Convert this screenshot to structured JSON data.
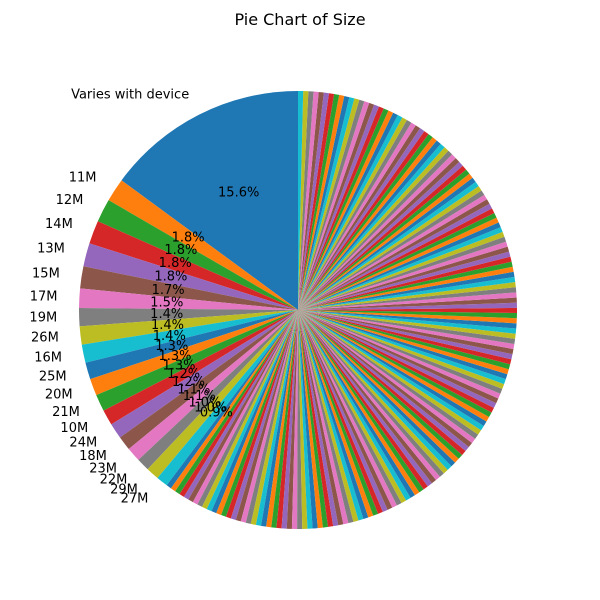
{
  "chart_data": {
    "type": "pie",
    "title": "Pie Chart of Size",
    "start_angle_deg": 90,
    "direction": "counterclockwise",
    "palette": [
      "#1f77b4",
      "#ff7f0e",
      "#2ca02c",
      "#d62728",
      "#9467bd",
      "#8c564b",
      "#e377c2",
      "#7f7f7f",
      "#bcbd22",
      "#17becf"
    ],
    "slices": [
      {
        "label": "Varies with device",
        "percent": 15.6
      },
      {
        "label": "11M",
        "percent": 1.8
      },
      {
        "label": "12M",
        "percent": 1.8
      },
      {
        "label": "14M",
        "percent": 1.8
      },
      {
        "label": "13M",
        "percent": 1.8
      },
      {
        "label": "15M",
        "percent": 1.7
      },
      {
        "label": "17M",
        "percent": 1.5
      },
      {
        "label": "19M",
        "percent": 1.4
      },
      {
        "label": "26M",
        "percent": 1.4
      },
      {
        "label": "16M",
        "percent": 1.4
      },
      {
        "label": "25M",
        "percent": 1.3
      },
      {
        "label": "20M",
        "percent": 1.3
      },
      {
        "label": "21M",
        "percent": 1.3
      },
      {
        "label": "10M",
        "percent": 1.2
      },
      {
        "label": "24M",
        "percent": 1.2
      },
      {
        "label": "18M",
        "percent": 1.1
      },
      {
        "label": "23M",
        "percent": 1.1
      },
      {
        "label": "22M",
        "percent": 1.0
      },
      {
        "label": "29M",
        "percent": 1.0
      },
      {
        "label": "27M",
        "percent": 0.9
      }
    ],
    "other_slices": {
      "count": 160,
      "percent_each": 0.39375
    }
  }
}
